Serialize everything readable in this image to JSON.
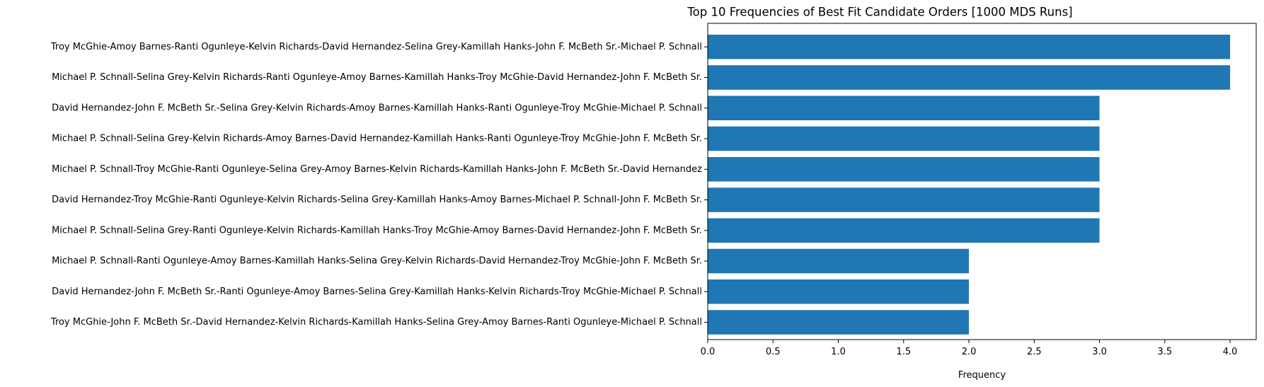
{
  "chart_data": {
    "type": "bar",
    "orientation": "horizontal",
    "title": "Top 10 Frequencies of Best Fit Candidate Orders [1000 MDS Runs]",
    "xlabel": "Frequency",
    "ylabel": "",
    "xlim": [
      0,
      4.2
    ],
    "xticks": [
      "0.0",
      "0.5",
      "1.0",
      "1.5",
      "2.0",
      "2.5",
      "3.0",
      "3.5",
      "4.0"
    ],
    "bar_color": "#1f77b4",
    "grid": false,
    "categories": [
      "Troy McGhie-John F. McBeth Sr.-David Hernandez-Kelvin Richards-Kamillah Hanks-Selina Grey-Amoy Barnes-Ranti Ogunleye-Michael P. Schnall",
      "David Hernandez-John F. McBeth Sr.-Ranti Ogunleye-Amoy Barnes-Selina Grey-Kamillah Hanks-Kelvin Richards-Troy McGhie-Michael P. Schnall",
      "Michael P. Schnall-Ranti Ogunleye-Amoy Barnes-Kamillah Hanks-Selina Grey-Kelvin Richards-David Hernandez-Troy McGhie-John F. McBeth Sr.",
      "Michael P. Schnall-Selina Grey-Ranti Ogunleye-Kelvin Richards-Kamillah Hanks-Troy McGhie-Amoy Barnes-David Hernandez-John F. McBeth Sr.",
      "David Hernandez-Troy McGhie-Ranti Ogunleye-Kelvin Richards-Selina Grey-Kamillah Hanks-Amoy Barnes-Michael P. Schnall-John F. McBeth Sr.",
      "Michael P. Schnall-Troy McGhie-Ranti Ogunleye-Selina Grey-Amoy Barnes-Kelvin Richards-Kamillah Hanks-John F. McBeth Sr.-David Hernandez",
      "Michael P. Schnall-Selina Grey-Kelvin Richards-Amoy Barnes-David Hernandez-Kamillah Hanks-Ranti Ogunleye-Troy McGhie-John F. McBeth Sr.",
      "David Hernandez-John F. McBeth Sr.-Selina Grey-Kelvin Richards-Amoy Barnes-Kamillah Hanks-Ranti Ogunleye-Troy McGhie-Michael P. Schnall",
      "Michael P. Schnall-Selina Grey-Kelvin Richards-Ranti Ogunleye-Amoy Barnes-Kamillah Hanks-Troy McGhie-David Hernandez-John F. McBeth Sr.",
      "Troy McGhie-Amoy Barnes-Ranti Ogunleye-Kelvin Richards-David Hernandez-Selina Grey-Kamillah Hanks-John F. McBeth Sr.-Michael P. Schnall"
    ],
    "values": [
      2,
      2,
      2,
      3,
      3,
      3,
      3,
      3,
      4,
      4
    ]
  }
}
